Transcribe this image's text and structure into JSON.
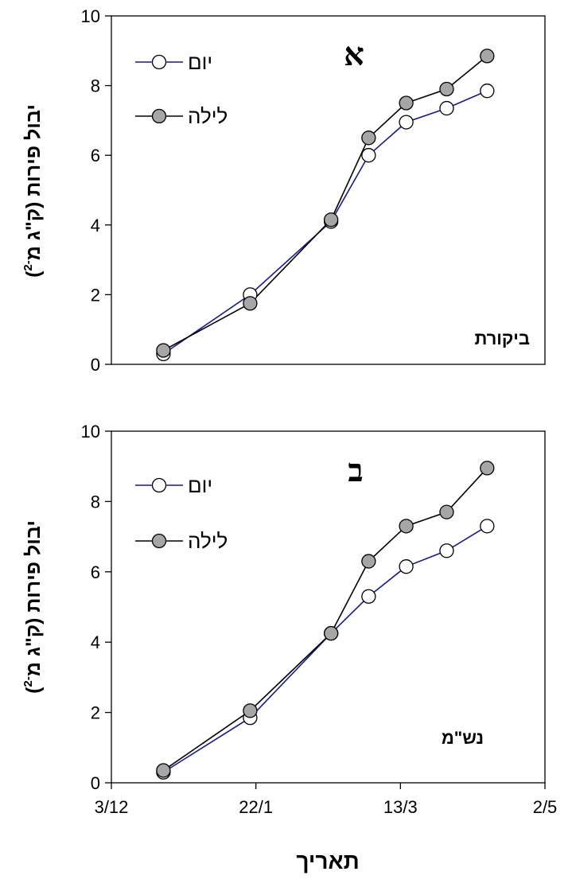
{
  "x_axis_label": "תאריך",
  "x_ticks": [
    "3/12",
    "22/1",
    "13/3",
    "2/5"
  ],
  "colors": {
    "day_line": "#1a1a80",
    "night_line": "#000000",
    "day_marker": "#ffffff",
    "night_marker": "#a6a6a6"
  },
  "chart_data": [
    {
      "type": "line",
      "panel_letter": "א",
      "treatment": "ביקורת",
      "ylabel_main": "יבול פירות (ק\"ג מ",
      "ylabel_sup": "-2",
      "ylabel_close": ")",
      "ylim": [
        0,
        10
      ],
      "yticks": [
        "0",
        "2",
        "4",
        "6",
        "8",
        "10"
      ],
      "xlim": [
        0,
        150
      ],
      "legend_position": "top-left",
      "series": [
        {
          "name": "יום",
          "x": [
            18,
            48,
            76,
            89,
            102,
            116,
            130
          ],
          "y": [
            0.3,
            2.0,
            4.1,
            6.0,
            6.95,
            7.35,
            7.85
          ]
        },
        {
          "name": "לילה",
          "x": [
            18,
            48,
            76,
            89,
            102,
            116,
            130
          ],
          "y": [
            0.4,
            1.75,
            4.15,
            6.5,
            7.5,
            7.9,
            8.85
          ]
        }
      ]
    },
    {
      "type": "line",
      "panel_letter": "ב",
      "treatment": "נש\"מ",
      "ylabel_main": "יבול פירות (ק\"ג מ",
      "ylabel_sup": "-2",
      "ylabel_close": ")",
      "ylim": [
        0,
        10
      ],
      "yticks": [
        "0",
        "2",
        "4",
        "6",
        "8",
        "10"
      ],
      "xlim": [
        0,
        150
      ],
      "legend_position": "top-left",
      "series": [
        {
          "name": "יום",
          "x": [
            18,
            48,
            76,
            89,
            102,
            116,
            130
          ],
          "y": [
            0.3,
            1.85,
            4.25,
            5.3,
            6.15,
            6.6,
            7.3
          ]
        },
        {
          "name": "לילה",
          "x": [
            18,
            48,
            76,
            89,
            102,
            116,
            130
          ],
          "y": [
            0.35,
            2.05,
            4.25,
            6.3,
            7.3,
            7.7,
            8.95
          ]
        }
      ]
    }
  ]
}
